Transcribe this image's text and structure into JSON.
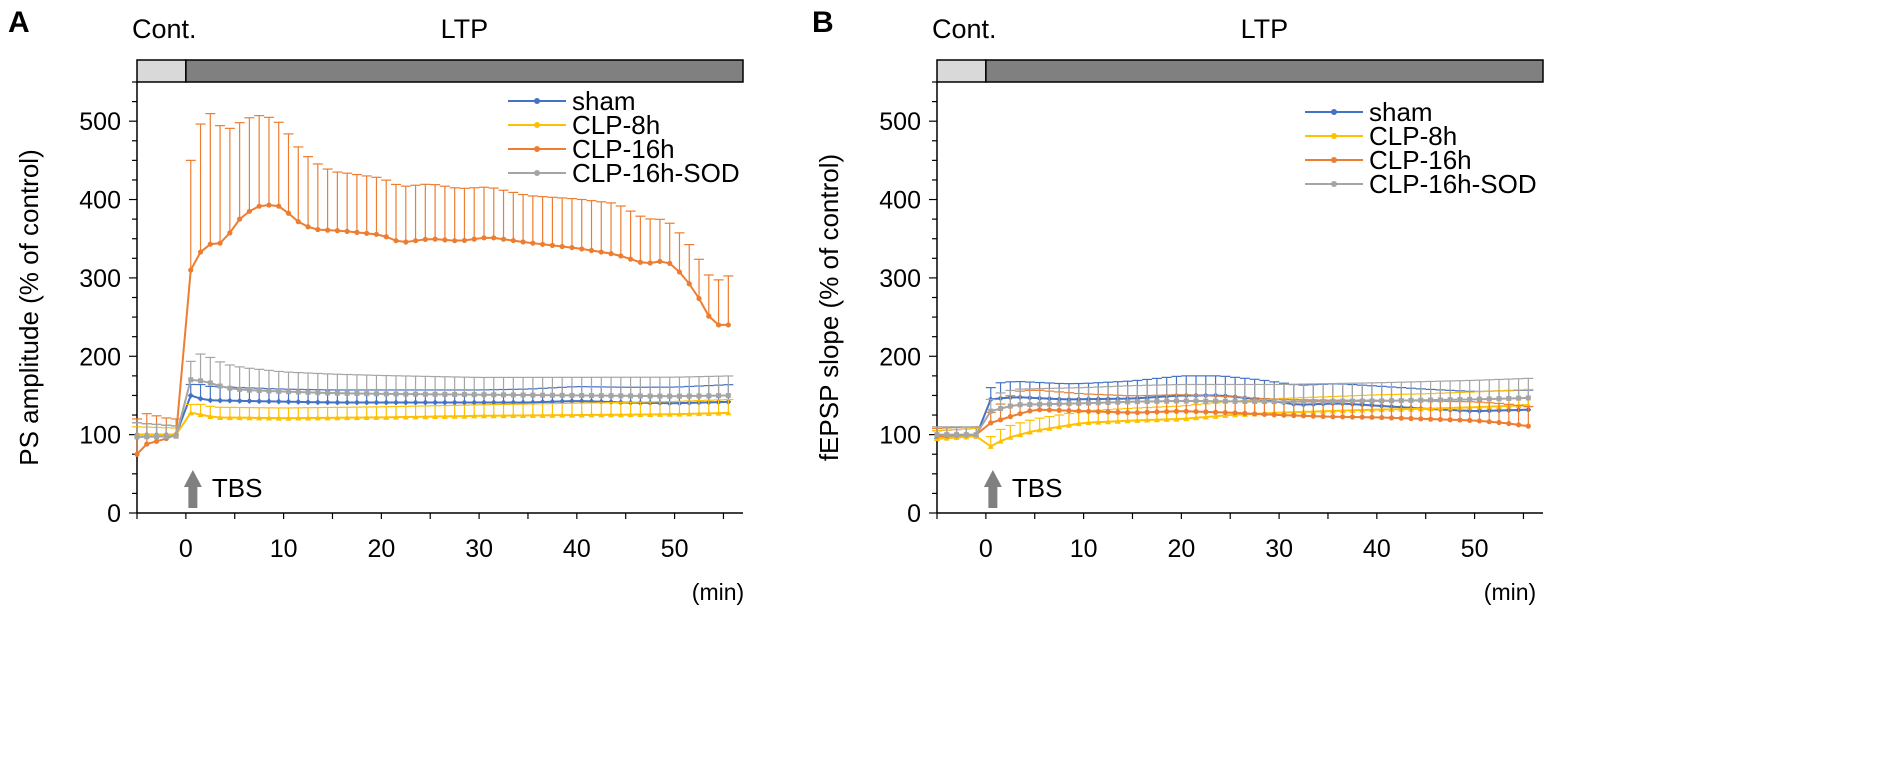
{
  "chart_data": [
    {
      "panel": "A",
      "type": "line",
      "ylabel": "PS amplitude (% of control)",
      "xunit": "(min)",
      "xlim": [
        -5,
        57
      ],
      "ylim": [
        0,
        550
      ],
      "xticks": [
        0,
        10,
        20,
        30,
        40,
        50
      ],
      "yticks": [
        0,
        100,
        200,
        300,
        400,
        500
      ],
      "phase_bar": [
        {
          "label": "Cont.",
          "from": -5,
          "to": 0,
          "color": "#d9d9d9"
        },
        {
          "label": "LTP",
          "from": 0,
          "to": 57,
          "color": "#808080"
        }
      ],
      "annotation": {
        "text": "TBS",
        "x": 0
      },
      "series": [
        {
          "name": "sham",
          "color": "#4472c4",
          "marker": "diamond",
          "keys": [
            [
              -5,
              100
            ],
            [
              -1,
              100
            ],
            [
              0.5,
              150
            ],
            [
              2,
              144
            ],
            [
              6,
              143
            ],
            [
              15,
              141
            ],
            [
              25,
              141
            ],
            [
              35,
              141
            ],
            [
              40,
              143
            ],
            [
              45,
              141
            ],
            [
              50,
              140
            ],
            [
              56,
              142
            ]
          ],
          "err_keys": [
            [
              -5,
              15
            ],
            [
              0,
              10
            ],
            [
              1,
              18
            ],
            [
              10,
              16
            ],
            [
              30,
              16
            ],
            [
              56,
              22
            ]
          ]
        },
        {
          "name": "CLP-8h",
          "color": "#ffc000",
          "marker": "triangle",
          "keys": [
            [
              -5,
              100
            ],
            [
              -1,
              100
            ],
            [
              0.5,
              128
            ],
            [
              3,
              122
            ],
            [
              10,
              121
            ],
            [
              20,
              122
            ],
            [
              30,
              124
            ],
            [
              40,
              125
            ],
            [
              50,
              126
            ],
            [
              56,
              128
            ]
          ],
          "err_keys": [
            [
              -5,
              10
            ],
            [
              0,
              8
            ],
            [
              1,
              13
            ],
            [
              10,
              13
            ],
            [
              30,
              14
            ],
            [
              56,
              17
            ]
          ]
        },
        {
          "name": "CLP-16h",
          "color": "#ed7d31",
          "marker": "circle",
          "keys": [
            [
              -5,
              75
            ],
            [
              -4,
              88
            ],
            [
              -2,
              95
            ],
            [
              -1,
              100
            ],
            [
              0.5,
              310
            ],
            [
              1.5,
              333
            ],
            [
              2.5,
              343
            ],
            [
              4,
              345
            ],
            [
              5,
              370
            ],
            [
              7,
              390
            ],
            [
              8,
              393
            ],
            [
              9,
              393
            ],
            [
              10,
              390
            ],
            [
              11,
              375
            ],
            [
              13,
              362
            ],
            [
              16,
              360
            ],
            [
              20,
              355
            ],
            [
              22,
              345
            ],
            [
              25,
              350
            ],
            [
              28,
              347
            ],
            [
              31,
              352
            ],
            [
              35,
              345
            ],
            [
              40,
              338
            ],
            [
              44,
              330
            ],
            [
              47,
              318
            ],
            [
              49,
              322
            ],
            [
              50,
              315
            ],
            [
              52,
              285
            ],
            [
              54,
              240
            ],
            [
              56,
              240
            ]
          ],
          "err_keys": [
            [
              -5,
              45
            ],
            [
              -1,
              20
            ],
            [
              0.5,
              140
            ],
            [
              2,
              175
            ],
            [
              5,
              125
            ],
            [
              9,
              110
            ],
            [
              15,
              75
            ],
            [
              25,
              70
            ],
            [
              35,
              60
            ],
            [
              44,
              65
            ],
            [
              48,
              55
            ],
            [
              50,
              50
            ],
            [
              53,
              50
            ],
            [
              56,
              65
            ]
          ]
        },
        {
          "name": "CLP-16h-SOD",
          "color": "#a5a5a5",
          "marker": "square",
          "keys": [
            [
              -5,
              97
            ],
            [
              -1,
              98
            ],
            [
              0.5,
              170
            ],
            [
              2,
              168
            ],
            [
              4,
              160
            ],
            [
              6,
              157
            ],
            [
              10,
              155
            ],
            [
              15,
              153
            ],
            [
              20,
              152
            ],
            [
              30,
              151
            ],
            [
              40,
              150
            ],
            [
              50,
              149
            ],
            [
              56,
              150
            ]
          ],
          "err_keys": [
            [
              -5,
              18
            ],
            [
              0,
              12
            ],
            [
              1,
              35
            ],
            [
              4,
              30
            ],
            [
              10,
              25
            ],
            [
              30,
              22
            ],
            [
              56,
              25
            ]
          ]
        }
      ]
    },
    {
      "panel": "B",
      "type": "line",
      "ylabel": "fEPSP slope (% of control)",
      "xunit": "(min)",
      "xlim": [
        -5,
        57
      ],
      "ylim": [
        0,
        550
      ],
      "xticks": [
        0,
        10,
        20,
        30,
        40,
        50
      ],
      "yticks": [
        0,
        100,
        200,
        300,
        400,
        500
      ],
      "phase_bar": [
        {
          "label": "Cont.",
          "from": -5,
          "to": 0,
          "color": "#d9d9d9"
        },
        {
          "label": "LTP",
          "from": 0,
          "to": 57,
          "color": "#808080"
        }
      ],
      "annotation": {
        "text": "TBS",
        "x": 0
      },
      "series": [
        {
          "name": "sham",
          "color": "#4472c4",
          "marker": "diamond",
          "keys": [
            [
              -5,
              95
            ],
            [
              -1,
              98
            ],
            [
              0.5,
              145
            ],
            [
              3,
              148
            ],
            [
              8,
              145
            ],
            [
              15,
              146
            ],
            [
              20,
              150
            ],
            [
              24,
              150
            ],
            [
              28,
              145
            ],
            [
              32,
              138
            ],
            [
              36,
              140
            ],
            [
              40,
              137
            ],
            [
              45,
              133
            ],
            [
              50,
              130
            ],
            [
              56,
              132
            ]
          ],
          "err_keys": [
            [
              -5,
              10
            ],
            [
              0,
              10
            ],
            [
              1,
              20
            ],
            [
              10,
              20
            ],
            [
              20,
              25
            ],
            [
              30,
              25
            ],
            [
              40,
              25
            ],
            [
              56,
              25
            ]
          ]
        },
        {
          "name": "CLP-8h",
          "color": "#ffc000",
          "marker": "triangle",
          "keys": [
            [
              -5,
              95
            ],
            [
              -1,
              98
            ],
            [
              0.5,
              85
            ],
            [
              2,
              95
            ],
            [
              5,
              105
            ],
            [
              10,
              115
            ],
            [
              15,
              118
            ],
            [
              20,
              120
            ],
            [
              25,
              125
            ],
            [
              30,
              128
            ],
            [
              35,
              130
            ],
            [
              40,
              132
            ],
            [
              45,
              133
            ],
            [
              50,
              135
            ],
            [
              56,
              138
            ]
          ],
          "err_keys": [
            [
              -5,
              10
            ],
            [
              0,
              10
            ],
            [
              1,
              15
            ],
            [
              10,
              15
            ],
            [
              30,
              18
            ],
            [
              56,
              20
            ]
          ]
        },
        {
          "name": "CLP-16h",
          "color": "#ed7d31",
          "marker": "circle",
          "keys": [
            [
              -5,
              98
            ],
            [
              -1,
              100
            ],
            [
              0.5,
              115
            ],
            [
              3,
              125
            ],
            [
              5,
              132
            ],
            [
              10,
              130
            ],
            [
              15,
              128
            ],
            [
              20,
              130
            ],
            [
              25,
              128
            ],
            [
              30,
              125
            ],
            [
              35,
              123
            ],
            [
              40,
              122
            ],
            [
              45,
              120
            ],
            [
              50,
              118
            ],
            [
              53,
              115
            ],
            [
              56,
              110
            ]
          ],
          "err_keys": [
            [
              -5,
              10
            ],
            [
              0,
              10
            ],
            [
              3,
              30
            ],
            [
              5,
              25
            ],
            [
              10,
              22
            ],
            [
              30,
              20
            ],
            [
              56,
              25
            ]
          ]
        },
        {
          "name": "CLP-16h-SOD",
          "color": "#a5a5a5",
          "marker": "square",
          "keys": [
            [
              -5,
              100
            ],
            [
              -1,
              100
            ],
            [
              0.5,
              130
            ],
            [
              3,
              138
            ],
            [
              10,
              140
            ],
            [
              15,
              142
            ],
            [
              20,
              143
            ],
            [
              30,
              142
            ],
            [
              40,
              143
            ],
            [
              50,
              145
            ],
            [
              56,
              147
            ]
          ],
          "err_keys": [
            [
              -5,
              10
            ],
            [
              0,
              10
            ],
            [
              1,
              20
            ],
            [
              10,
              20
            ],
            [
              30,
              22
            ],
            [
              56,
              25
            ]
          ]
        }
      ]
    }
  ]
}
